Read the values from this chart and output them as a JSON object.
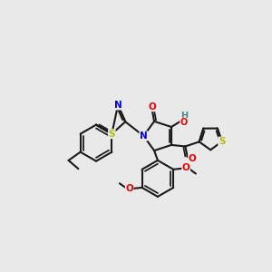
{
  "bg_color": "#e9e9e9",
  "bond_color": "#1a1a1a",
  "bond_lw": 1.5,
  "atom_colors": {
    "S": "#b8b800",
    "N": "#0000ee",
    "O": "#ee0000",
    "H": "#4a8a8a",
    "C": "#1a1a1a"
  },
  "figsize": [
    3.0,
    3.0
  ],
  "dpi": 100
}
